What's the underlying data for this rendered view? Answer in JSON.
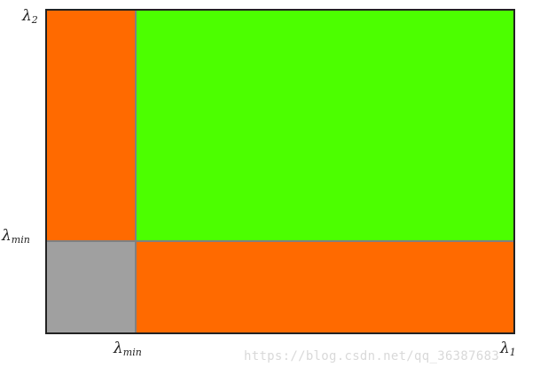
{
  "labels": {
    "lambda2_symbol": "λ",
    "lambda2_sub": "2",
    "lambda_min_y_symbol": "λ",
    "lambda_min_y_sub": "min",
    "lambda_min_x_symbol": "λ",
    "lambda_min_x_sub": "min",
    "lambda1_symbol": "λ",
    "lambda1_sub": "1"
  },
  "regions": {
    "top_left": "#ff6a00",
    "top_right": "#4cff00",
    "bottom_left": "#a0a0a0",
    "bottom_right": "#ff6a00"
  },
  "colors": {
    "border": "#222222",
    "divider": "#808080"
  },
  "watermark": "https://blog.csdn.net/qq_36387683"
}
